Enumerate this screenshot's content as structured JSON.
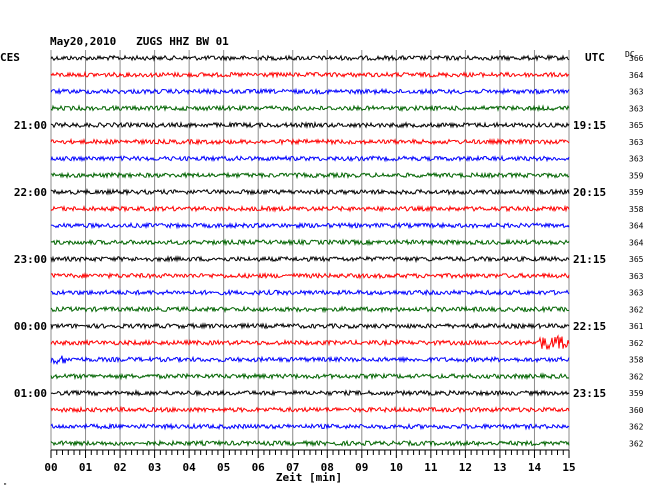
{
  "header": {
    "title": "May20,2010   ZUGS HHZ BW 01",
    "left_label": "CES",
    "right_label": "UTC",
    "dc_label": "DC",
    "corner_mark": "\""
  },
  "chart_data": {
    "type": "line",
    "title": "May20,2010   ZUGS HHZ BW 01",
    "xlabel": "Zeit [min]",
    "x_ticks": [
      "00",
      "01",
      "02",
      "03",
      "04",
      "05",
      "06",
      "07",
      "08",
      "09",
      "10",
      "11",
      "12",
      "13",
      "14",
      "15"
    ],
    "xlim": [
      0,
      15
    ],
    "grid": true,
    "trace_colors": [
      "#000000",
      "#ff0000",
      "#0000ff",
      "#006400"
    ],
    "left_time_labels": [
      "21:00",
      "22:00",
      "23:00",
      "00:00",
      "01:00"
    ],
    "right_time_labels": [
      "19:15",
      "20:15",
      "21:15",
      "22:15",
      "23:15"
    ],
    "labeled_trace_rows": [
      4,
      8,
      12,
      16,
      20
    ],
    "trace_count": 24,
    "dc_values": [
      366,
      364,
      363,
      363,
      365,
      363,
      363,
      359,
      359,
      358,
      364,
      364,
      365,
      363,
      363,
      362,
      361,
      362,
      358,
      362,
      359,
      360,
      362,
      362
    ],
    "events": [
      {
        "trace": 17,
        "x_start": 14.1,
        "x_end": 15.0,
        "amplitude": "large"
      },
      {
        "trace": 18,
        "x_start": 0.0,
        "x_end": 0.45,
        "amplitude": "medium"
      }
    ]
  }
}
